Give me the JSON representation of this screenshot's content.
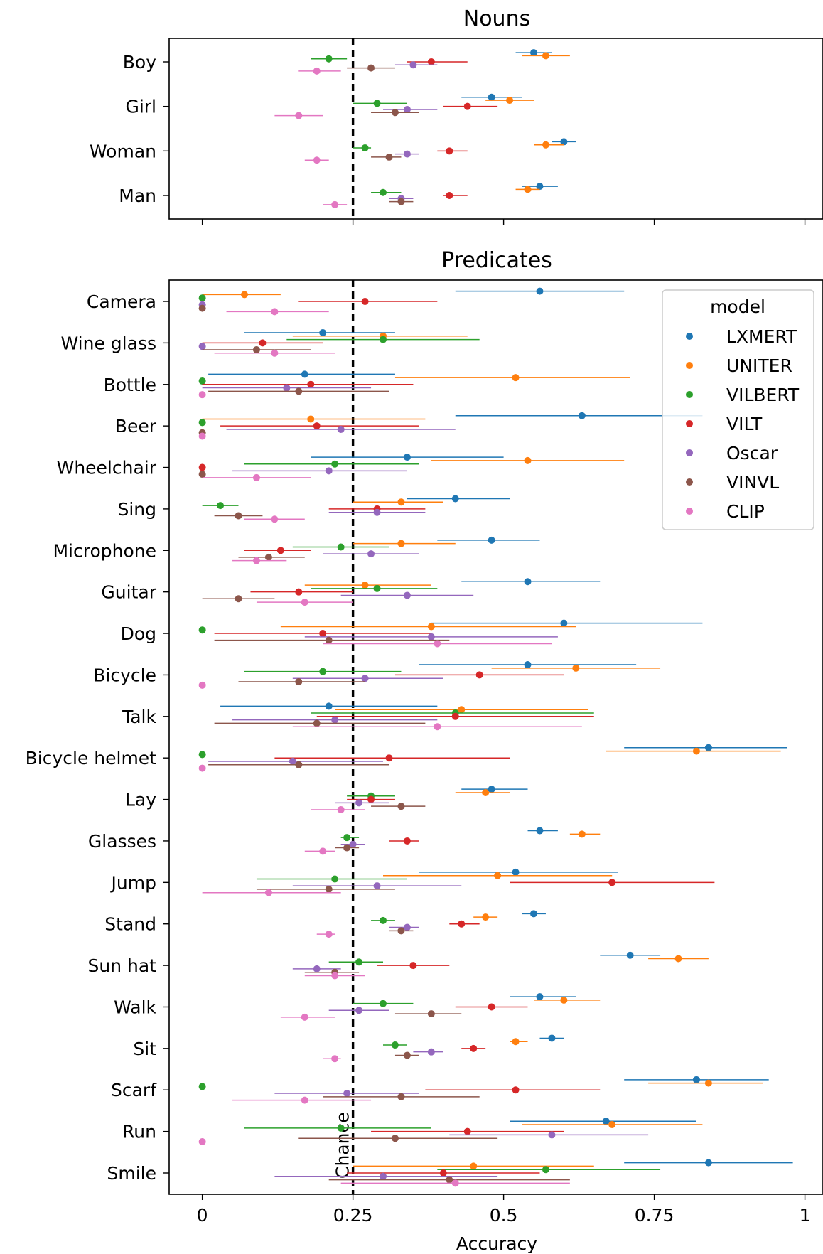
{
  "colors": {
    "LXMERT": "#1f77b4",
    "UNITER": "#ff7f0e",
    "VILBERT": "#2ca02c",
    "VILT": "#d62728",
    "Oscar": "#9467bd",
    "VINVL": "#8c564b",
    "CLIP": "#e377c2"
  },
  "chart_data": [
    {
      "type": "scatter",
      "title": "Nouns",
      "xlabel": "",
      "ylabel": "",
      "xlim": [
        0.0,
        1.0
      ],
      "chance": 0.25,
      "models": [
        "LXMERT",
        "UNITER",
        "VILBERT",
        "VILT",
        "Oscar",
        "VINVL",
        "CLIP"
      ],
      "categories": [
        "Boy",
        "Girl",
        "Woman",
        "Man"
      ],
      "series": [
        {
          "name": "LXMERT",
          "points": [
            [
              0.55,
              0.52,
              0.58
            ],
            [
              0.48,
              0.43,
              0.53
            ],
            [
              0.6,
              0.58,
              0.62
            ],
            [
              0.56,
              0.53,
              0.59
            ]
          ]
        },
        {
          "name": "UNITER",
          "points": [
            [
              0.57,
              0.53,
              0.61
            ],
            [
              0.51,
              0.47,
              0.55
            ],
            [
              0.57,
              0.55,
              0.6
            ],
            [
              0.54,
              0.52,
              0.56
            ]
          ]
        },
        {
          "name": "VILBERT",
          "points": [
            [
              0.21,
              0.18,
              0.24
            ],
            [
              0.29,
              0.25,
              0.34
            ],
            [
              0.27,
              0.25,
              0.28
            ],
            [
              0.3,
              0.28,
              0.33
            ]
          ]
        },
        {
          "name": "VILT",
          "points": [
            [
              0.38,
              0.34,
              0.44
            ],
            [
              0.44,
              0.4,
              0.49
            ],
            [
              0.41,
              0.39,
              0.44
            ],
            [
              0.41,
              0.4,
              0.44
            ]
          ]
        },
        {
          "name": "Oscar",
          "points": [
            [
              0.35,
              0.32,
              0.39
            ],
            [
              0.34,
              0.3,
              0.39
            ],
            [
              0.34,
              0.32,
              0.36
            ],
            [
              0.33,
              0.31,
              0.35
            ]
          ]
        },
        {
          "name": "VINVL",
          "points": [
            [
              0.28,
              0.24,
              0.32
            ],
            [
              0.32,
              0.28,
              0.36
            ],
            [
              0.31,
              0.28,
              0.33
            ],
            [
              0.33,
              0.31,
              0.35
            ]
          ]
        },
        {
          "name": "CLIP",
          "points": [
            [
              0.19,
              0.16,
              0.23
            ],
            [
              0.16,
              0.12,
              0.2
            ],
            [
              0.19,
              0.17,
              0.21
            ],
            [
              0.22,
              0.2,
              0.24
            ]
          ]
        }
      ]
    },
    {
      "type": "scatter",
      "title": "Predicates",
      "xlabel": "Accuracy",
      "ylabel": "",
      "xlim": [
        -0.055,
        1.03
      ],
      "xticks": [
        0,
        0.25,
        0.5,
        0.75,
        1
      ],
      "xticklabels": [
        "0",
        "0.25",
        "0.5",
        "0.75",
        "1"
      ],
      "chance": 0.25,
      "chance_label": "Chance",
      "legend": {
        "title": "model",
        "position": "top-right"
      },
      "models": [
        "LXMERT",
        "UNITER",
        "VILBERT",
        "VILT",
        "Oscar",
        "VINVL",
        "CLIP"
      ],
      "categories": [
        "Camera",
        "Wine glass",
        "Bottle",
        "Beer",
        "Wheelchair",
        "Sing",
        "Microphone",
        "Guitar",
        "Dog",
        "Bicycle",
        "Talk",
        "Bicycle helmet",
        "Lay",
        "Glasses",
        "Jump",
        "Stand",
        "Sun hat",
        "Walk",
        "Sit",
        "Scarf",
        "Run",
        "Smile"
      ],
      "series": [
        {
          "name": "LXMERT",
          "points": [
            [
              0.56,
              0.42,
              0.7
            ],
            [
              0.2,
              0.07,
              0.32
            ],
            [
              0.17,
              0.01,
              0.32
            ],
            [
              0.63,
              0.42,
              0.83
            ],
            [
              0.34,
              0.18,
              0.5
            ],
            [
              0.42,
              0.34,
              0.51
            ],
            [
              0.48,
              0.39,
              0.56
            ],
            [
              0.54,
              0.43,
              0.66
            ],
            [
              0.6,
              0.38,
              0.83
            ],
            [
              0.54,
              0.36,
              0.72
            ],
            [
              0.21,
              0.03,
              0.39
            ],
            [
              0.84,
              0.7,
              0.97
            ],
            [
              0.48,
              0.43,
              0.54
            ],
            [
              0.56,
              0.54,
              0.59
            ],
            [
              0.52,
              0.36,
              0.69
            ],
            [
              0.55,
              0.53,
              0.57
            ],
            [
              0.71,
              0.66,
              0.76
            ],
            [
              0.56,
              0.51,
              0.62
            ],
            [
              0.58,
              0.56,
              0.6
            ],
            [
              0.82,
              0.7,
              0.94
            ],
            [
              0.67,
              0.51,
              0.82
            ],
            [
              0.84,
              0.7,
              0.98
            ]
          ]
        },
        {
          "name": "UNITER",
          "points": [
            [
              0.07,
              0.0,
              0.13
            ],
            [
              0.3,
              0.15,
              0.44
            ],
            [
              0.52,
              0.32,
              0.71
            ],
            [
              0.18,
              0.0,
              0.37
            ],
            [
              0.54,
              0.38,
              0.7
            ],
            [
              0.33,
              0.25,
              0.4
            ],
            [
              0.33,
              0.25,
              0.42
            ],
            [
              0.27,
              0.17,
              0.38
            ],
            [
              0.38,
              0.13,
              0.62
            ],
            [
              0.62,
              0.48,
              0.76
            ],
            [
              0.43,
              0.22,
              0.64
            ],
            [
              0.82,
              0.67,
              0.96
            ],
            [
              0.47,
              0.42,
              0.51
            ],
            [
              0.63,
              0.61,
              0.66
            ],
            [
              0.49,
              0.3,
              0.68
            ],
            [
              0.47,
              0.45,
              0.49
            ],
            [
              0.79,
              0.74,
              0.84
            ],
            [
              0.6,
              0.55,
              0.66
            ],
            [
              0.52,
              0.51,
              0.54
            ],
            [
              0.84,
              0.74,
              0.93
            ],
            [
              0.68,
              0.53,
              0.83
            ],
            [
              0.45,
              0.25,
              0.65
            ]
          ]
        },
        {
          "name": "VILBERT",
          "points": [
            [
              0.0,
              null,
              null
            ],
            [
              0.3,
              0.14,
              0.46
            ],
            [
              0.0,
              null,
              null
            ],
            [
              0.0,
              null,
              null
            ],
            [
              0.22,
              0.07,
              0.36
            ],
            [
              0.03,
              0.0,
              0.06
            ],
            [
              0.23,
              0.15,
              0.31
            ],
            [
              0.29,
              0.18,
              0.39
            ],
            [
              0.0,
              null,
              null
            ],
            [
              0.2,
              0.07,
              0.33
            ],
            [
              0.42,
              0.18,
              0.65
            ],
            [
              0.0,
              null,
              null
            ],
            [
              0.28,
              0.24,
              0.32
            ],
            [
              0.24,
              0.23,
              0.26
            ],
            [
              0.22,
              0.09,
              0.34
            ],
            [
              0.3,
              0.28,
              0.32
            ],
            [
              0.26,
              0.21,
              0.3
            ],
            [
              0.3,
              0.25,
              0.35
            ],
            [
              0.32,
              0.3,
              0.34
            ],
            [
              0.0,
              null,
              null
            ],
            [
              0.23,
              0.07,
              0.38
            ],
            [
              0.57,
              0.39,
              0.76
            ]
          ]
        },
        {
          "name": "VILT",
          "points": [
            [
              0.27,
              0.16,
              0.39
            ],
            [
              0.1,
              0.0,
              0.2
            ],
            [
              0.18,
              0.0,
              0.35
            ],
            [
              0.19,
              0.03,
              0.36
            ],
            [
              0.0,
              null,
              null
            ],
            [
              0.29,
              0.21,
              0.37
            ],
            [
              0.13,
              0.07,
              0.18
            ],
            [
              0.16,
              0.08,
              0.25
            ],
            [
              0.2,
              0.02,
              0.38
            ],
            [
              0.46,
              0.32,
              0.6
            ],
            [
              0.42,
              0.19,
              0.65
            ],
            [
              0.31,
              0.12,
              0.51
            ],
            [
              0.28,
              0.24,
              0.32
            ],
            [
              0.34,
              0.31,
              0.36
            ],
            [
              0.68,
              0.51,
              0.85
            ],
            [
              0.43,
              0.41,
              0.46
            ],
            [
              0.35,
              0.29,
              0.41
            ],
            [
              0.48,
              0.42,
              0.54
            ],
            [
              0.45,
              0.43,
              0.47
            ],
            [
              0.52,
              0.37,
              0.66
            ],
            [
              0.44,
              0.28,
              0.6
            ],
            [
              0.4,
              0.24,
              0.56
            ]
          ]
        },
        {
          "name": "Oscar",
          "points": [
            [
              0.0,
              null,
              null
            ],
            [
              0.0,
              null,
              null
            ],
            [
              0.14,
              0.0,
              0.28
            ],
            [
              0.23,
              0.04,
              0.42
            ],
            [
              0.21,
              0.05,
              0.34
            ],
            [
              0.29,
              0.21,
              0.37
            ],
            [
              0.28,
              0.2,
              0.36
            ],
            [
              0.34,
              0.23,
              0.45
            ],
            [
              0.38,
              0.17,
              0.59
            ],
            [
              0.27,
              0.15,
              0.4
            ],
            [
              0.22,
              0.05,
              0.39
            ],
            [
              0.15,
              0.01,
              0.3
            ],
            [
              0.26,
              0.22,
              0.31
            ],
            [
              0.25,
              0.23,
              0.27
            ],
            [
              0.29,
              0.15,
              0.43
            ],
            [
              0.34,
              0.31,
              0.36
            ],
            [
              0.19,
              0.15,
              0.23
            ],
            [
              0.26,
              0.21,
              0.31
            ],
            [
              0.38,
              0.35,
              0.4
            ],
            [
              0.24,
              0.12,
              0.36
            ],
            [
              0.58,
              0.41,
              0.74
            ],
            [
              0.3,
              0.12,
              0.49
            ]
          ]
        },
        {
          "name": "VINVL",
          "points": [
            [
              0.0,
              null,
              null
            ],
            [
              0.09,
              0.0,
              0.18
            ],
            [
              0.16,
              0.01,
              0.31
            ],
            [
              0.0,
              null,
              null
            ],
            [
              0.0,
              null,
              null
            ],
            [
              0.06,
              0.02,
              0.1
            ],
            [
              0.11,
              0.06,
              0.17
            ],
            [
              0.06,
              0.0,
              0.12
            ],
            [
              0.21,
              0.02,
              0.41
            ],
            [
              0.16,
              0.06,
              0.27
            ],
            [
              0.19,
              0.02,
              0.37
            ],
            [
              0.16,
              0.01,
              0.31
            ],
            [
              0.33,
              0.28,
              0.37
            ],
            [
              0.24,
              0.22,
              0.26
            ],
            [
              0.21,
              0.09,
              0.32
            ],
            [
              0.33,
              0.31,
              0.35
            ],
            [
              0.22,
              0.17,
              0.26
            ],
            [
              0.38,
              0.32,
              0.43
            ],
            [
              0.34,
              0.32,
              0.36
            ],
            [
              0.33,
              0.2,
              0.46
            ],
            [
              0.32,
              0.16,
              0.49
            ],
            [
              0.41,
              0.21,
              0.61
            ]
          ]
        },
        {
          "name": "CLIP",
          "points": [
            [
              0.12,
              0.04,
              0.21
            ],
            [
              0.12,
              0.02,
              0.22
            ],
            [
              0.0,
              null,
              null
            ],
            [
              0.0,
              null,
              null
            ],
            [
              0.09,
              0.0,
              0.18
            ],
            [
              0.12,
              0.07,
              0.17
            ],
            [
              0.09,
              0.05,
              0.14
            ],
            [
              0.17,
              0.09,
              0.25
            ],
            [
              0.39,
              0.2,
              0.58
            ],
            [
              0.0,
              null,
              null
            ],
            [
              0.39,
              0.15,
              0.63
            ],
            [
              0.0,
              null,
              null
            ],
            [
              0.23,
              0.18,
              0.27
            ],
            [
              0.2,
              0.17,
              0.22
            ],
            [
              0.11,
              0.0,
              0.23
            ],
            [
              0.21,
              0.19,
              0.22
            ],
            [
              0.22,
              0.17,
              0.27
            ],
            [
              0.17,
              0.13,
              0.22
            ],
            [
              0.22,
              0.2,
              0.23
            ],
            [
              0.17,
              0.05,
              0.28
            ],
            [
              0.0,
              null,
              null
            ],
            [
              0.42,
              0.23,
              0.61
            ]
          ]
        }
      ]
    }
  ]
}
